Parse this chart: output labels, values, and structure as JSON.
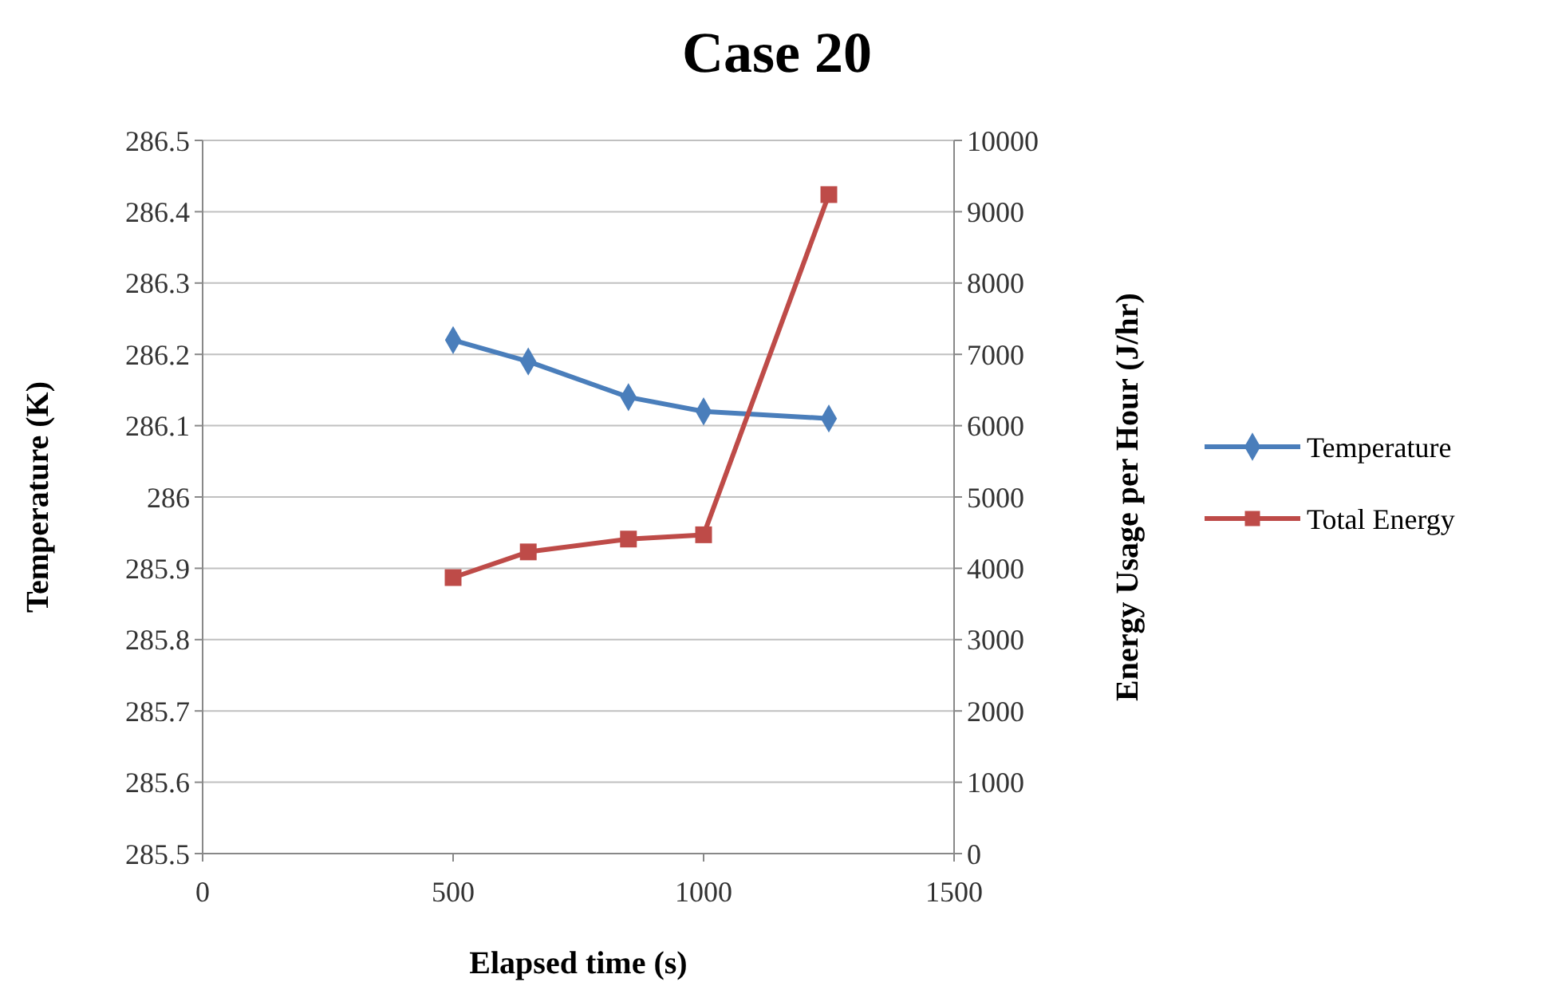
{
  "chart_data": {
    "type": "line",
    "title": "Case 20",
    "xlabel": "Elapsed  time (s)",
    "ylabel": "Temperature  (K)",
    "y2label": "Energy Usage per Hour  (J/hr)",
    "x": [
      500,
      650,
      850,
      1000,
      1250
    ],
    "xlim": [
      0,
      1500
    ],
    "xticks": [
      0,
      500,
      1000,
      1500
    ],
    "ylim": [
      285.5,
      286.5
    ],
    "yticks": [
      {
        "value": 285.5,
        "label": "285.5"
      },
      {
        "value": 285.6,
        "label": "285.6"
      },
      {
        "value": 285.7,
        "label": "285.7"
      },
      {
        "value": 285.8,
        "label": "285.8"
      },
      {
        "value": 285.9,
        "label": "285.9"
      },
      {
        "value": 286,
        "label": "286"
      },
      {
        "value": 286.1,
        "label": "286.1"
      },
      {
        "value": 286.2,
        "label": "286.2"
      },
      {
        "value": 286.3,
        "label": "286.3"
      },
      {
        "value": 286.4,
        "label": "286.4"
      },
      {
        "value": 286.5,
        "label": "286.5"
      }
    ],
    "y2lim": [
      0,
      10000
    ],
    "y2ticks": [
      0,
      1000,
      2000,
      3000,
      4000,
      5000,
      6000,
      7000,
      8000,
      9000,
      10000
    ],
    "grid": "y",
    "legend": "right",
    "series": [
      {
        "name": "Temperature",
        "color": "#4a7ebb",
        "marker": "diamond",
        "values": [
          286.22,
          286.19,
          286.14,
          286.12,
          286.11
        ]
      },
      {
        "name": "Total Energy",
        "color": "#be4b48",
        "marker": "square",
        "axis": "y2",
        "values": [
          3870,
          4230,
          4410,
          4470,
          9240
        ]
      }
    ]
  }
}
